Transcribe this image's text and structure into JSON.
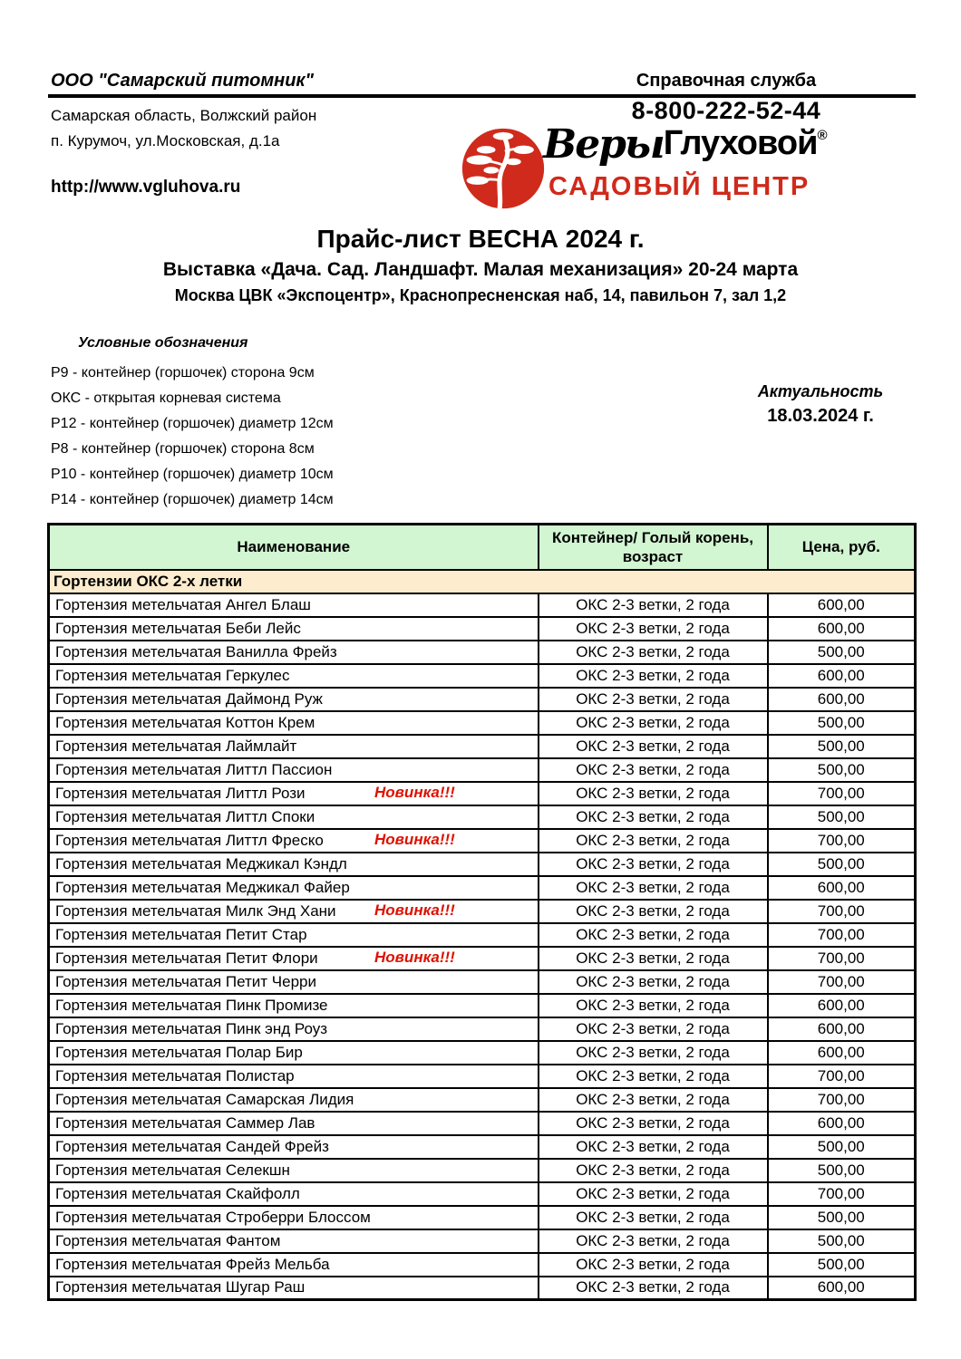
{
  "company": {
    "name": "ООО \"Самарский питомник\"",
    "region": "Самарская область, Волжский район",
    "address": "п. Курумоч, ул.Московская, д.1а",
    "website": "http://www.vgluhova.ru"
  },
  "hotline": {
    "label": "Справочная служба",
    "phone": "8-800-222-52-44"
  },
  "logo": {
    "script_text": "Веры",
    "name_text": "Глуховой",
    "registered_mark": "®",
    "subtitle": "САДОВЫЙ ЦЕНТР"
  },
  "title": {
    "main": "Прайс-лист ВЕСНА 2024 г.",
    "subtitle": "Выставка «Дача. Сад. Ландшафт. Малая механизация» 20-24 марта",
    "location": "Москва  ЦВК «Экспоцентр», Краснопресненская наб, 14, павильон 7, зал 1,2"
  },
  "legend": {
    "heading": "Условные обозначения",
    "items": [
      "Р9 - контейнер (горшочек) сторона 9см",
      "ОКС - открытая корневая система",
      "Р12 - контейнер (горшочек) диаметр 12см",
      "Р8 - контейнер (горшочек) сторона 8см",
      "Р10 - контейнер (горшочек) диаметр 10см",
      "Р14 - контейнер (горшочек) диаметр 14см"
    ]
  },
  "actuality": {
    "label": "Актуальность",
    "date": "18.03.2024 г."
  },
  "colors": {
    "header_green": "#d2f5d2",
    "section_tan": "#fdeccd",
    "novinka_red": "#dd1100",
    "logo_red": "#cf2a1b"
  },
  "table": {
    "headers": [
      "Наименование",
      "Контейнер/ Голый корень, возраст",
      "Цена, руб."
    ],
    "section": "Гортензии ОКС 2-х летки",
    "novinka_label": "Новинка!!!",
    "rows": [
      {
        "name": "Гортензия метельчатая Ангел Блаш",
        "novinka": false,
        "container": "ОКС 2-3 ветки, 2 года",
        "price": "600,00"
      },
      {
        "name": "Гортензия метельчатая Беби Лейс",
        "novinka": false,
        "container": "ОКС 2-3 ветки, 2 года",
        "price": "600,00"
      },
      {
        "name": "Гортензия метельчатая Ванилла Фрейз",
        "novinka": false,
        "container": "ОКС 2-3 ветки, 2 года",
        "price": "500,00"
      },
      {
        "name": "Гортензия метельчатая Геркулес",
        "novinka": false,
        "container": "ОКС 2-3 ветки, 2 года",
        "price": "600,00"
      },
      {
        "name": "Гортензия метельчатая Даймонд Руж",
        "novinka": false,
        "container": "ОКС 2-3 ветки, 2 года",
        "price": "600,00"
      },
      {
        "name": "Гортензия метельчатая Коттон Крем",
        "novinka": false,
        "container": "ОКС 2-3 ветки, 2 года",
        "price": "500,00"
      },
      {
        "name": "Гортензия метельчатая Лаймлайт",
        "novinka": false,
        "container": "ОКС 2-3 ветки, 2 года",
        "price": "500,00"
      },
      {
        "name": "Гортензия метельчатая Литтл Пассион",
        "novinka": false,
        "container": "ОКС 2-3 ветки, 2 года",
        "price": "500,00"
      },
      {
        "name": "Гортензия метельчатая Литтл Рози",
        "novinka": true,
        "container": "ОКС 2-3 ветки, 2 года",
        "price": "700,00"
      },
      {
        "name": "Гортензия метельчатая Литтл Споки",
        "novinka": false,
        "container": "ОКС 2-3 ветки, 2 года",
        "price": "500,00"
      },
      {
        "name": "Гортензия метельчатая Литтл Фреско",
        "novinka": true,
        "container": "ОКС 2-3 ветки, 2 года",
        "price": "700,00"
      },
      {
        "name": "Гортензия метельчатая Меджикал Кэндл",
        "novinka": false,
        "container": "ОКС 2-3 ветки, 2 года",
        "price": "500,00"
      },
      {
        "name": "Гортензия метельчатая Меджикал Файер",
        "novinka": false,
        "container": "ОКС 2-3 ветки, 2 года",
        "price": "600,00"
      },
      {
        "name": "Гортензия метельчатая Милк Энд Хани",
        "novinka": true,
        "container": "ОКС 2-3 ветки, 2 года",
        "price": "700,00"
      },
      {
        "name": "Гортензия метельчатая Петит Стар",
        "novinka": false,
        "container": "ОКС 2-3 ветки, 2 года",
        "price": "700,00"
      },
      {
        "name": "Гортензия метельчатая Петит Флори",
        "novinka": true,
        "container": "ОКС 2-3 ветки, 2 года",
        "price": "700,00"
      },
      {
        "name": "Гортензия метельчатая Петит Черри",
        "novinka": false,
        "container": "ОКС 2-3 ветки, 2 года",
        "price": "700,00"
      },
      {
        "name": "Гортензия метельчатая Пинк Промизе",
        "novinka": false,
        "container": "ОКС 2-3 ветки, 2 года",
        "price": "600,00"
      },
      {
        "name": "Гортензия метельчатая Пинк энд Роуз",
        "novinka": false,
        "container": "ОКС 2-3 ветки, 2 года",
        "price": "600,00"
      },
      {
        "name": "Гортензия метельчатая Полар Бир",
        "novinka": false,
        "container": "ОКС 2-3 ветки, 2 года",
        "price": "600,00"
      },
      {
        "name": "Гортензия метельчатая Полистар",
        "novinka": false,
        "container": "ОКС 2-3 ветки, 2 года",
        "price": "700,00"
      },
      {
        "name": "Гортензия метельчатая Самарская Лидия",
        "novinka": false,
        "container": "ОКС 2-3 ветки, 2 года",
        "price": "700,00"
      },
      {
        "name": "Гортензия метельчатая Саммер Лав",
        "novinka": false,
        "container": "ОКС 2-3 ветки, 2 года",
        "price": "600,00"
      },
      {
        "name": "Гортензия метельчатая Сандей Фрейз",
        "novinka": false,
        "container": "ОКС 2-3 ветки, 2 года",
        "price": "500,00"
      },
      {
        "name": "Гортензия метельчатая Селекшн",
        "novinka": false,
        "container": "ОКС 2-3 ветки, 2 года",
        "price": "500,00"
      },
      {
        "name": "Гортензия метельчатая Скайфолл",
        "novinka": false,
        "container": "ОКС 2-3 ветки, 2 года",
        "price": "700,00"
      },
      {
        "name": "Гортензия метельчатая Строберри Блоссом",
        "novinka": false,
        "container": "ОКС 2-3 ветки, 2 года",
        "price": "500,00"
      },
      {
        "name": "Гортензия метельчатая Фантом",
        "novinka": false,
        "container": "ОКС 2-3 ветки, 2 года",
        "price": "500,00"
      },
      {
        "name": "Гортензия метельчатая Фрейз Мельба",
        "novinka": false,
        "container": "ОКС 2-3 ветки, 2 года",
        "price": "500,00"
      },
      {
        "name": "Гортензия метельчатая Шугар Раш",
        "novinka": false,
        "container": "ОКС 2-3 ветки, 2 года",
        "price": "600,00"
      }
    ]
  }
}
